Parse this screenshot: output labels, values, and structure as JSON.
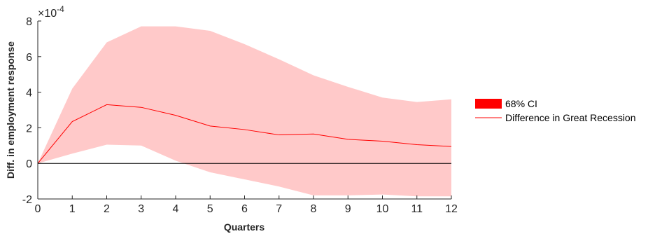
{
  "chart_data": {
    "type": "area",
    "title": "",
    "xlabel": "Quarters",
    "ylabel": "Diff. in employment response",
    "y_exponent_label": "×10",
    "y_exponent_power": "-4",
    "x": [
      0,
      1,
      2,
      3,
      4,
      5,
      6,
      7,
      8,
      9,
      10,
      11,
      12
    ],
    "xlim": [
      0,
      12
    ],
    "ylim": [
      -2,
      8
    ],
    "yticks": [
      -2,
      0,
      2,
      4,
      6,
      8
    ],
    "xticks": [
      0,
      1,
      2,
      3,
      4,
      5,
      6,
      7,
      8,
      9,
      10,
      11,
      12
    ],
    "grid": false,
    "legend_position": "right",
    "series": [
      {
        "name": "68% CI",
        "kind": "band",
        "color": "#ffc9c9",
        "legend_color": "#ff0000",
        "upper": [
          0,
          4.2,
          6.8,
          7.7,
          7.7,
          7.45,
          6.7,
          5.85,
          4.95,
          4.3,
          3.7,
          3.45,
          3.6
        ],
        "lower": [
          0,
          0.55,
          1.05,
          1.0,
          0.15,
          -0.5,
          -0.9,
          -1.3,
          -1.8,
          -1.8,
          -1.75,
          -1.85,
          -1.85
        ]
      },
      {
        "name": "Difference in Great Recession",
        "kind": "line",
        "color": "#ff0000",
        "values": [
          0,
          2.35,
          3.3,
          3.15,
          2.7,
          2.1,
          1.9,
          1.6,
          1.65,
          1.35,
          1.25,
          1.05,
          0.95
        ]
      }
    ],
    "zero_line": {
      "y": 0,
      "color": "#000000"
    }
  }
}
